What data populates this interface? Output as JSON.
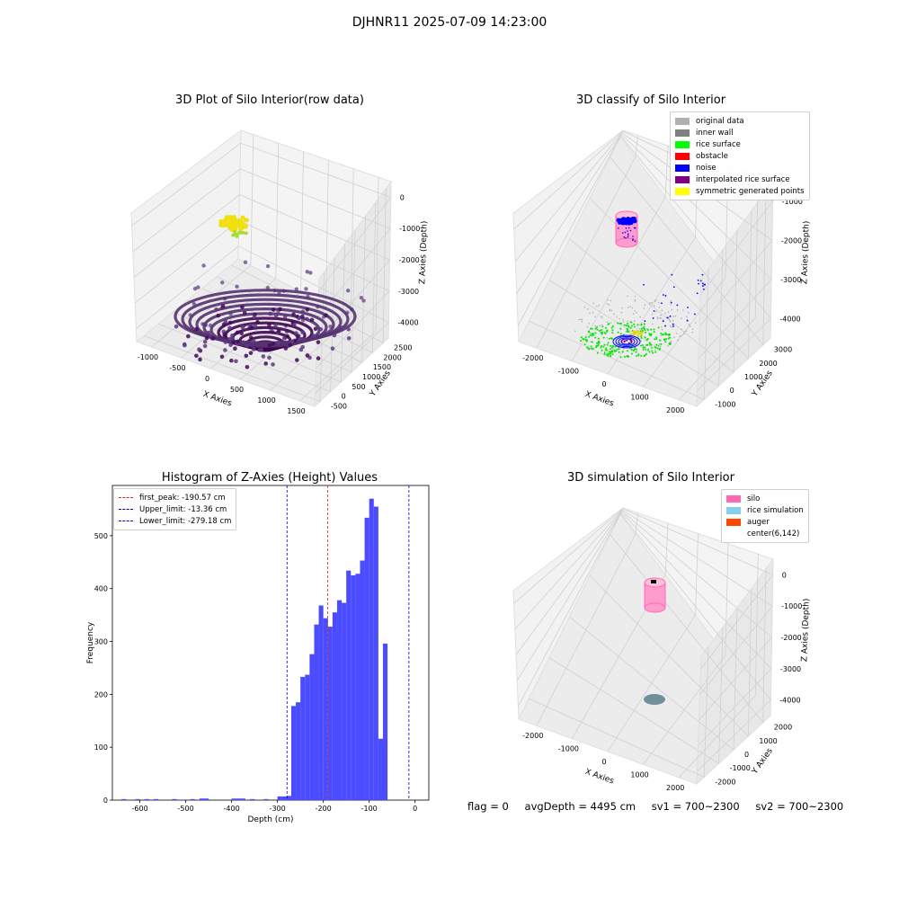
{
  "suptitle": "DJHNR11 2025-07-09 14:23:00",
  "colors": {
    "grey": "#b0b0b0",
    "darkgrey": "#808080",
    "green": "#00ff00",
    "red": "#ff0000",
    "blue": "#0000ff",
    "purple": "#800080",
    "yellow": "#ffff00",
    "silo": "#ff69b4",
    "rice": "#87ceeb",
    "auger": "#ff4500",
    "bars": "#4b4bff"
  },
  "chart_data": [
    {
      "type": "scatter",
      "title": "3D Plot of Silo Interior(row data)",
      "xlabel": "X Axies",
      "ylabel": "Y Axies",
      "zlabel": "Z Axies (Depth)",
      "xticks": [
        "-1000",
        "-500",
        "0",
        "500",
        "1000",
        "1500"
      ],
      "yticks": [
        "-500",
        "0",
        "500",
        "1000",
        "1500",
        "2000",
        "2500"
      ],
      "zticks": [
        "0",
        "-1000",
        "-2000",
        "-3000",
        "-4000"
      ],
      "colormap": "viridis"
    },
    {
      "type": "scatter",
      "title": "3D classify of Silo Interior",
      "xlabel": "X Axies",
      "ylabel": "Y Axies",
      "zlabel": "Z Axies (Depth)",
      "xticks": [
        "-2000",
        "-1000",
        "0",
        "1000",
        "2000"
      ],
      "yticks": [
        "-1000",
        "0",
        "1000",
        "2000",
        "3000"
      ],
      "zticks": [
        "-1000",
        "-2000",
        "-3000",
        "-4000"
      ],
      "legend": [
        {
          "label": "original data",
          "color": "#b0b0b0"
        },
        {
          "label": "inner wall",
          "color": "#808080"
        },
        {
          "label": "rice surface",
          "color": "#00ff00"
        },
        {
          "label": "obstacle",
          "color": "#ff0000"
        },
        {
          "label": "noise",
          "color": "#0000ff"
        },
        {
          "label": "interpolated rice surface",
          "color": "#800080"
        },
        {
          "label": "symmetric generated points",
          "color": "#ffff00"
        }
      ]
    },
    {
      "type": "bar",
      "title": "Histogram of Z-Axies (Height) Values",
      "xlabel": "Depth (cm)",
      "ylabel": "Frequency",
      "xlim": [
        -660,
        30
      ],
      "ylim": [
        0,
        595
      ],
      "xticks": [
        -600,
        -500,
        -400,
        -300,
        -200,
        -100,
        0
      ],
      "yticks": [
        0,
        100,
        200,
        300,
        400,
        500
      ],
      "bin_width": 10,
      "bins": [
        [
          -640,
          2
        ],
        [
          -610,
          2
        ],
        [
          -590,
          2
        ],
        [
          -570,
          2
        ],
        [
          -530,
          2
        ],
        [
          -510,
          1
        ],
        [
          -490,
          2
        ],
        [
          -470,
          3
        ],
        [
          -460,
          3
        ],
        [
          -400,
          3
        ],
        [
          -390,
          3
        ],
        [
          -380,
          3
        ],
        [
          -360,
          2
        ],
        [
          -330,
          2
        ],
        [
          -300,
          7
        ],
        [
          -290,
          7
        ],
        [
          -280,
          8
        ],
        [
          -270,
          178
        ],
        [
          -260,
          185
        ],
        [
          -250,
          233
        ],
        [
          -240,
          237
        ],
        [
          -230,
          276
        ],
        [
          -220,
          332
        ],
        [
          -210,
          368
        ],
        [
          -200,
          344
        ],
        [
          -190,
          328
        ],
        [
          -180,
          355
        ],
        [
          -170,
          378
        ],
        [
          -160,
          373
        ],
        [
          -150,
          434
        ],
        [
          -140,
          425
        ],
        [
          -130,
          428
        ],
        [
          -120,
          453
        ],
        [
          -110,
          534
        ],
        [
          -100,
          570
        ],
        [
          -90,
          555
        ],
        [
          -80,
          116
        ],
        [
          -70,
          296
        ]
      ],
      "vlines": [
        {
          "label": "first_peak: -190.57 cm",
          "x": -190.57,
          "color": "#d62728"
        },
        {
          "label": "Upper_limit: -13.36 cm",
          "x": -13.36,
          "color": "#0000cc"
        },
        {
          "label": "Lower_limit: -279.18 cm",
          "x": -279.18,
          "color": "#0000cc"
        }
      ]
    },
    {
      "type": "scatter",
      "title": "3D simulation of Silo Interior",
      "xlabel": "X Axies",
      "ylabel": "Y Axies",
      "zlabel": "Z Axies (Depth)",
      "xticks": [
        "-2000",
        "-1000",
        "0",
        "1000",
        "2000"
      ],
      "yticks": [
        "-2000",
        "-1000",
        "0",
        "1000",
        "2000"
      ],
      "zticks": [
        "0",
        "-1000",
        "-2000",
        "-3000",
        "-4000"
      ],
      "legend": [
        {
          "label": "silo",
          "color": "#ff69b4"
        },
        {
          "label": "rice simulation",
          "color": "#87ceeb"
        },
        {
          "label": "auger",
          "color": "#ff4500"
        },
        {
          "label": "center(6,142)",
          "color": "#ffffff"
        }
      ]
    }
  ],
  "footer": {
    "flag": "flag = 0",
    "avgdepth": "avgDepth = 4495 cm",
    "sv1": "sv1 = 700~2300",
    "sv2": "sv2 = 700~2300"
  }
}
